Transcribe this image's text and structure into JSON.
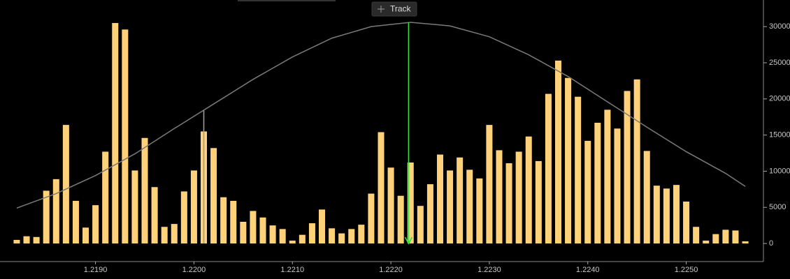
{
  "toolbar": {
    "button": "Track"
  },
  "chart_data": {
    "type": "bar",
    "x": [
      1.2182,
      1.2183,
      1.2184,
      1.2185,
      1.2186,
      1.2187,
      1.2188,
      1.2189,
      1.219,
      1.2191,
      1.2192,
      1.2193,
      1.2194,
      1.2195,
      1.2196,
      1.2197,
      1.2198,
      1.2199,
      1.22,
      1.2201,
      1.2202,
      1.2203,
      1.2204,
      1.2205,
      1.2206,
      1.2207,
      1.2208,
      1.2209,
      1.221,
      1.2211,
      1.2212,
      1.2213,
      1.2214,
      1.2215,
      1.2216,
      1.2217,
      1.2218,
      1.2219,
      1.222,
      1.2221,
      1.2222,
      1.2223,
      1.2224,
      1.2225,
      1.2226,
      1.2227,
      1.2228,
      1.2229,
      1.223,
      1.2231,
      1.2232,
      1.2233,
      1.2234,
      1.2235,
      1.2236,
      1.2237,
      1.2238,
      1.2239,
      1.224,
      1.2241,
      1.2242,
      1.2243,
      1.2244,
      1.2245,
      1.2246,
      1.2247,
      1.2248,
      1.2249,
      1.225,
      1.2251,
      1.2252,
      1.2253,
      1.2254,
      1.2255,
      1.2256
    ],
    "values": [
      500,
      1000,
      900,
      7300,
      8900,
      16400,
      5900,
      2200,
      5300,
      12700,
      30500,
      29600,
      10100,
      14600,
      7800,
      2300,
      2700,
      7200,
      10100,
      15500,
      13200,
      6400,
      5900,
      3000,
      4500,
      3600,
      2500,
      2000,
      400,
      1200,
      2800,
      4700,
      2100,
      1400,
      2000,
      2600,
      6900,
      15400,
      10500,
      6600,
      11200,
      5200,
      8200,
      12300,
      10100,
      11900,
      10200,
      9000,
      16400,
      12900,
      11100,
      12700,
      14800,
      11400,
      20700,
      25300,
      22900,
      20300,
      14200,
      16700,
      18500,
      15900,
      21100,
      22700,
      12800,
      8000,
      7600,
      8100,
      5800,
      2300,
      400,
      1300,
      1900,
      1800,
      300
    ],
    "color": "#ffd27a",
    "curve": {
      "color": "#7a7a7a",
      "x": [
        1.2182,
        1.2186,
        1.219,
        1.2194,
        1.2198,
        1.2202,
        1.2206,
        1.221,
        1.2214,
        1.2218,
        1.2222,
        1.2226,
        1.223,
        1.2234,
        1.2238,
        1.2242,
        1.2246,
        1.225,
        1.2254,
        1.2256
      ],
      "values": [
        4900,
        6900,
        9400,
        12400,
        15900,
        19300,
        22700,
        25800,
        28400,
        30000,
        30600,
        30100,
        28600,
        26100,
        23100,
        19600,
        16100,
        12700,
        9700,
        7900
      ]
    },
    "reference_lines": [
      {
        "x": 1.2201,
        "y": 18400,
        "color": "#9a9a9a"
      },
      {
        "x": 1.22218,
        "y": 30600,
        "color": "#33dd33"
      }
    ],
    "xlim": [
      1.21803,
      1.22577
    ],
    "xticks": [
      {
        "value": 1.219,
        "label": "1.2190"
      },
      {
        "value": 1.22,
        "label": "1.2200"
      },
      {
        "value": 1.221,
        "label": "1.2210"
      },
      {
        "value": 1.222,
        "label": "1.2220"
      },
      {
        "value": 1.223,
        "label": "1.2230"
      },
      {
        "value": 1.224,
        "label": "1.2240"
      },
      {
        "value": 1.225,
        "label": "1.2250"
      }
    ],
    "ylim": [
      -2500,
      33200
    ],
    "yticks": [
      0,
      5000,
      10000,
      15000,
      20000,
      25000,
      30000
    ],
    "grid": false
  }
}
